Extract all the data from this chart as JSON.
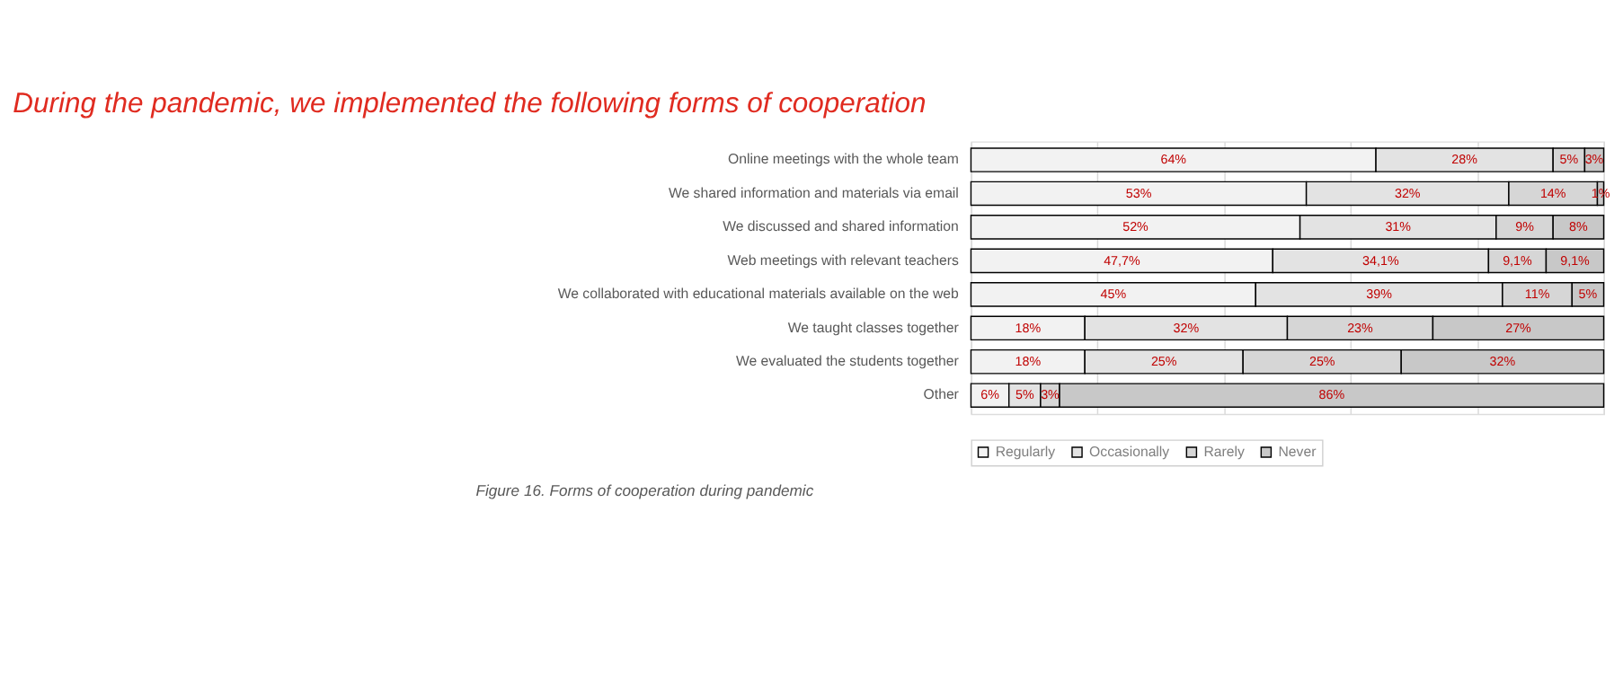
{
  "chart_data": {
    "type": "bar",
    "orientation": "horizontal",
    "stacked": true,
    "title": "During the pandemic, we implemented the following forms of cooperation",
    "categories": [
      "Online meetings with the whole team",
      "We shared information and materials via email",
      "We discussed and shared information",
      "Web meetings with relevant teachers",
      "We collaborated with educational materials available on the web",
      "We taught classes together",
      "We evaluated the students together",
      "Other"
    ],
    "series": [
      {
        "name": "Regularly",
        "color": "#f2f2f2",
        "values": [
          64,
          53,
          52,
          47.7,
          45,
          18,
          18,
          6
        ],
        "value_labels": [
          "64%",
          "53%",
          "52%",
          "47,7%",
          "45%",
          "18%",
          "18%",
          "6%"
        ]
      },
      {
        "name": "Occasionally",
        "color": "#e3e3e3",
        "values": [
          28,
          32,
          31,
          34.1,
          39,
          32,
          25,
          5
        ],
        "value_labels": [
          "28%",
          "32%",
          "31%",
          "34,1%",
          "39%",
          "32%",
          "25%",
          "5%"
        ]
      },
      {
        "name": "Rarely",
        "color": "#d6d6d6",
        "values": [
          5,
          14,
          9,
          9.1,
          11,
          23,
          25,
          3
        ],
        "value_labels": [
          "5%",
          "14%",
          "9%",
          "9,1%",
          "11%",
          "23%",
          "25%",
          "3%"
        ]
      },
      {
        "name": "Never",
        "color": "#c8c8c8",
        "values": [
          3,
          1,
          8,
          9.1,
          5,
          27,
          32,
          86
        ],
        "value_labels": [
          "3%",
          "1%",
          "8%",
          "9,1%",
          "5%",
          "27%",
          "32%",
          "86%"
        ]
      }
    ],
    "xlim": [
      0,
      100
    ],
    "xticks": [
      {
        "value": 0,
        "label": null
      },
      {
        "value": 20,
        "label": null
      },
      {
        "value": 40,
        "label": null
      },
      {
        "value": 60,
        "label": null
      },
      {
        "value": 80,
        "label": null
      },
      {
        "value": 100,
        "label": null
      }
    ],
    "grid": "x",
    "tick_labels": "y",
    "legend": "bottom",
    "annotations": [
      "Figure 16. Forms of cooperation during pandemic"
    ]
  }
}
